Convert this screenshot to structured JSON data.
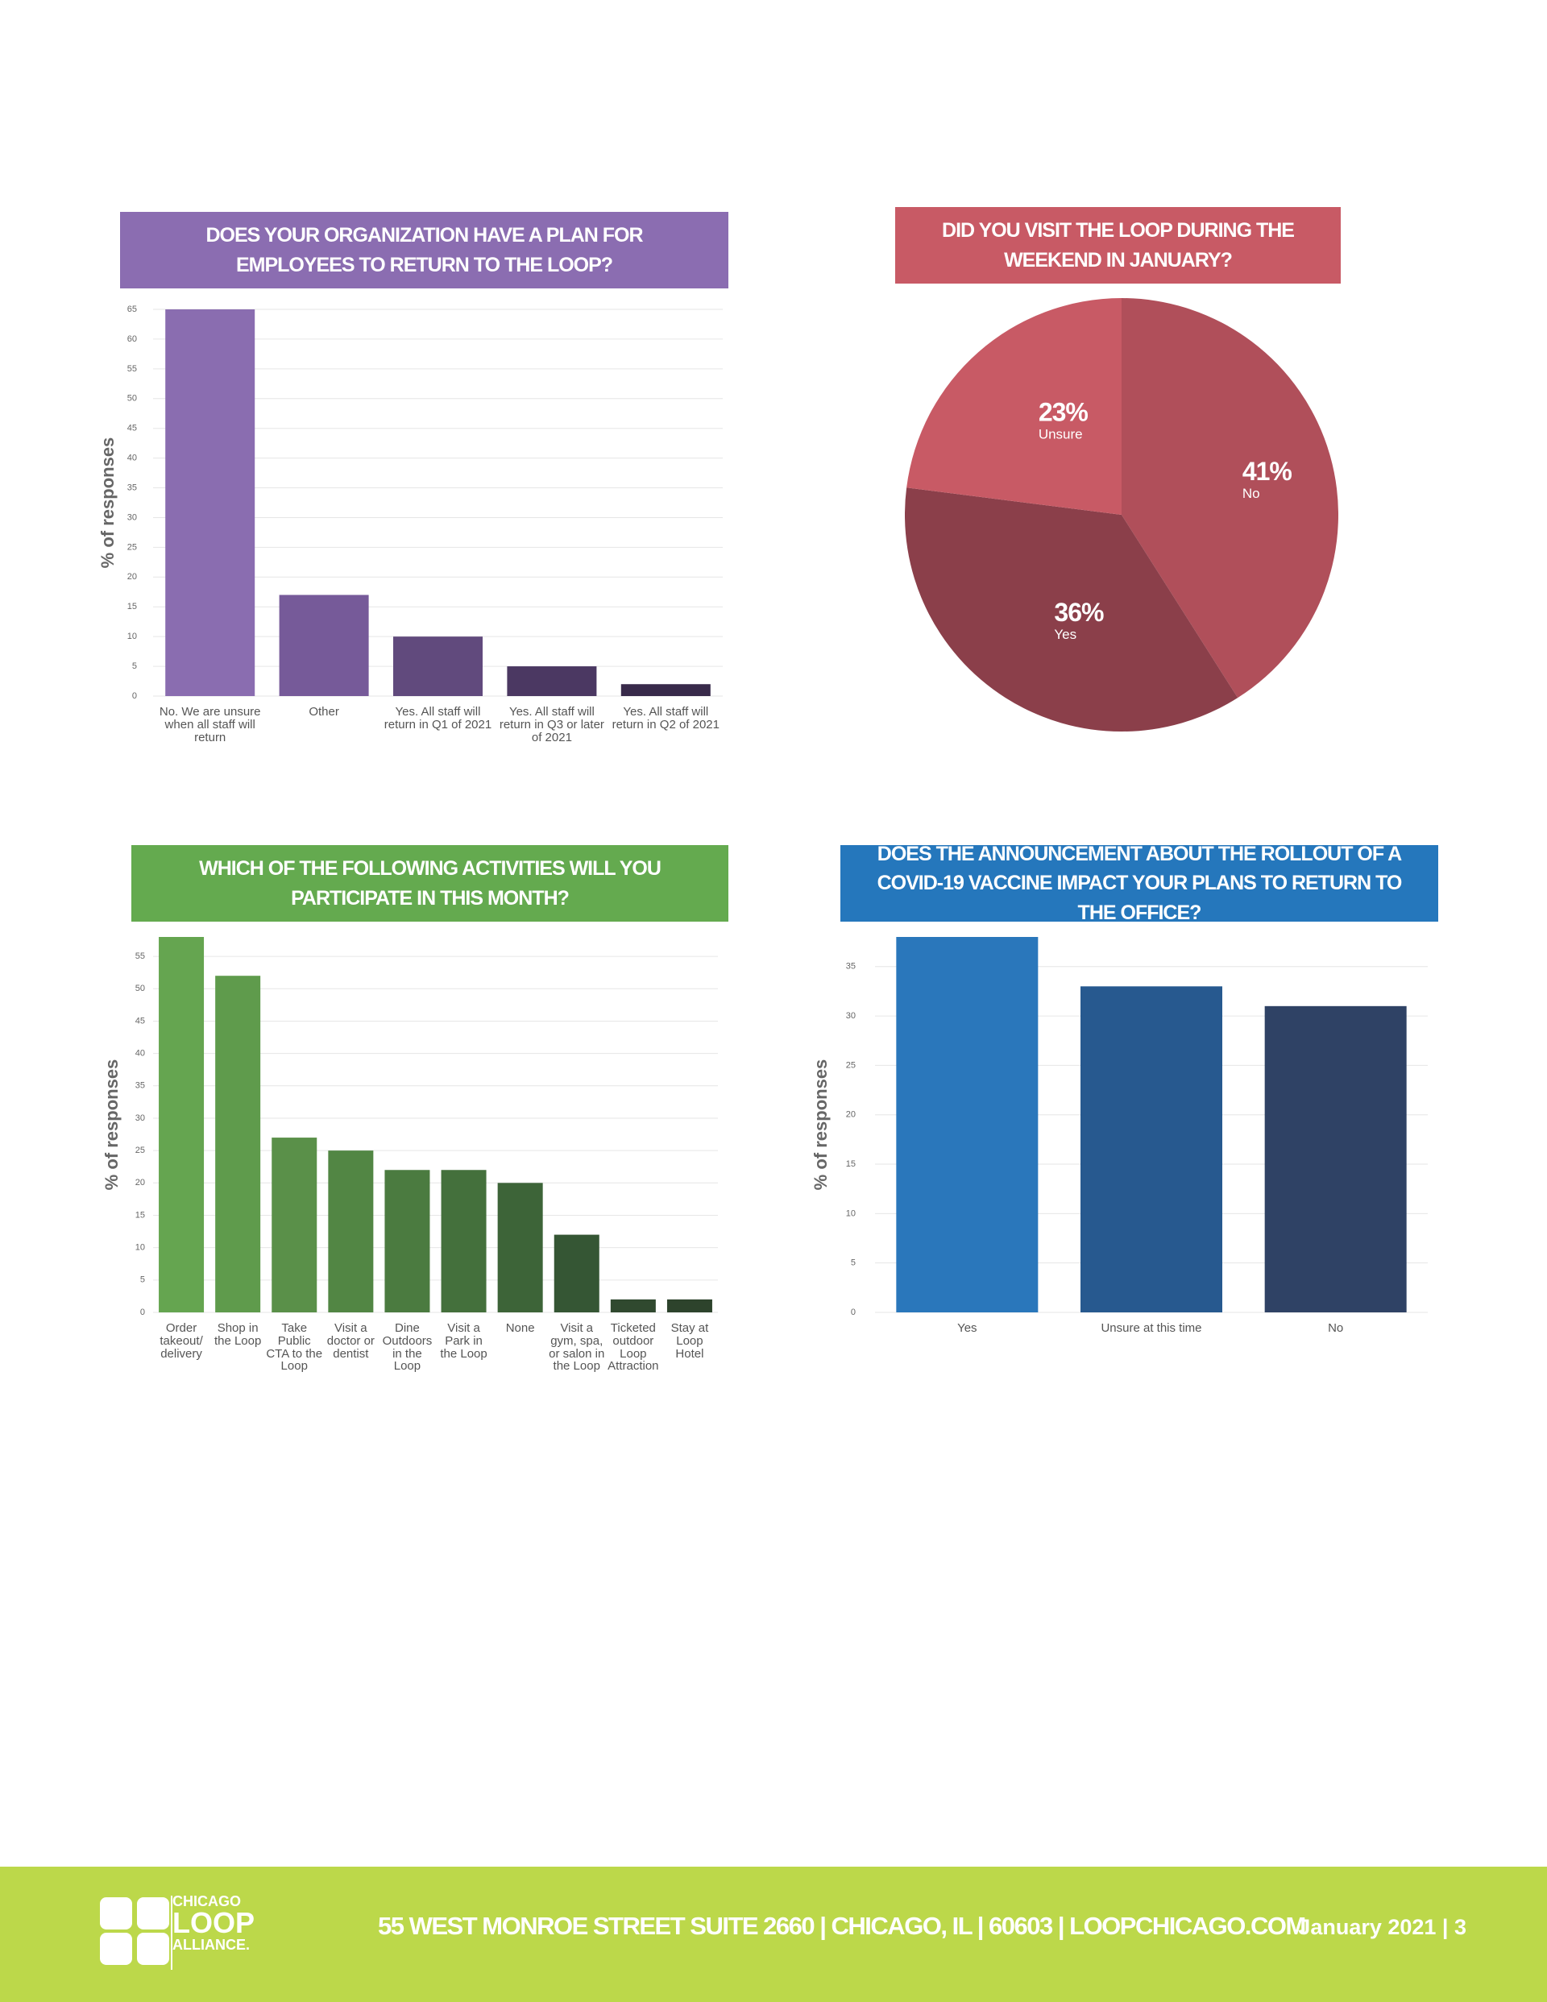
{
  "chart_data": [
    {
      "type": "bar",
      "title": "DOES YOUR ORGANIZATION HAVE A PLAN FOR EMPLOYEES TO RETURN TO THE LOOP?",
      "title_color": "#8b6db1",
      "y_label": "% of responses",
      "categories": [
        "No. We are unsure when all staff will return",
        "Other",
        "Yes. All staff will return in Q1 of 2021",
        "Yes. All staff will return in Q3 or later of 2021",
        "Yes. All staff will return in Q2 of 2021"
      ],
      "values": [
        65,
        17,
        10,
        5,
        2
      ],
      "colors": [
        "#8a6db0",
        "#765a99",
        "#614a7d",
        "#4b3862",
        "#382a4a"
      ],
      "ylim": [
        0,
        65
      ],
      "yticks": [
        0,
        5,
        10,
        15,
        20,
        25,
        30,
        35,
        40,
        45,
        50,
        55,
        60,
        65
      ],
      "grid": true
    },
    {
      "type": "pie",
      "title": "DID YOU VISIT THE LOOP DURING THE WEEKEND IN JANUARY?",
      "title_color": "#c85a65",
      "categories": [
        "No",
        "Yes",
        "Unsure"
      ],
      "values": [
        41,
        36,
        23
      ],
      "value_labels": [
        "41%",
        "36%",
        "23%"
      ],
      "colors": [
        "#b04f5a",
        "#8b3f4a",
        "#c85a65"
      ]
    },
    {
      "type": "bar",
      "title": "WHICH OF THE FOLLOWING ACTIVITIES WILL YOU PARTICIPATE IN THIS MONTH?",
      "title_color": "#64aa4f",
      "y_label": "% of responses",
      "categories": [
        "Order takeout/ delivery",
        "Shop in the Loop",
        "Take Public CTA to the Loop",
        "Visit a doctor or dentist",
        "Dine Outdoors in the Loop",
        "Visit a Park in the Loop",
        "None",
        "Visit a gym, spa, or salon in the Loop",
        "Ticketed outdoor Loop Attraction",
        "Stay at Loop Hotel"
      ],
      "values": [
        58,
        52,
        27,
        25,
        22,
        22,
        20,
        12,
        2,
        2
      ],
      "colors": [
        "#65a550",
        "#5f9b4c",
        "#5a9049",
        "#528644",
        "#4b7b40",
        "#44703c",
        "#3d6438",
        "#355634",
        "#30492f",
        "#2d432c"
      ],
      "ylim": [
        0,
        58
      ],
      "yticks": [
        0,
        5,
        10,
        15,
        20,
        25,
        30,
        35,
        40,
        45,
        50,
        55
      ],
      "grid": true
    },
    {
      "type": "bar",
      "title": "DOES THE ANNOUNCEMENT ABOUT THE ROLLOUT OF A COVID-19 VACCINE IMPACT YOUR PLANS TO RETURN TO THE OFFICE?",
      "title_color": "#2577bc",
      "y_label": "% of responses",
      "categories": [
        "Yes",
        "Unsure at this time",
        "No"
      ],
      "values": [
        38,
        33,
        31
      ],
      "colors": [
        "#2a77bb",
        "#27598f",
        "#2f4265"
      ],
      "ylim": [
        0,
        38
      ],
      "yticks": [
        0,
        5,
        10,
        15,
        20,
        25,
        30,
        35
      ],
      "grid": true
    }
  ],
  "footer": {
    "logo": [
      "CHICAGO",
      "LOOP",
      "ALLIANCE."
    ],
    "address": "55 WEST MONROE STREET SUITE 2660 | CHICAGO, IL | 60603 | LOOPCHICAGO.COM",
    "page": "January 2021 | 3"
  }
}
